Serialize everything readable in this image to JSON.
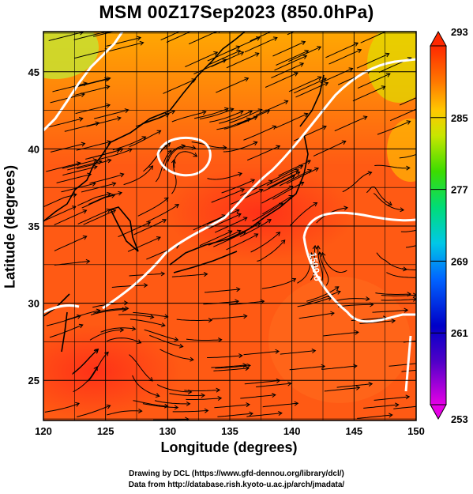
{
  "title": "MSM 00Z17Sep2023 (850.0hPa)",
  "x_axis": {
    "label": "Longitude (degrees)",
    "ticks": [
      "120",
      "125",
      "130",
      "135",
      "140",
      "145",
      "150"
    ],
    "range": [
      120,
      150
    ]
  },
  "y_axis": {
    "label": "Latitude  (degrees)",
    "ticks": [
      "25",
      "30",
      "35",
      "40",
      "45"
    ],
    "range": [
      22.4,
      47.6
    ]
  },
  "contour_label": "1500.0",
  "colorbar": {
    "ticks": [
      "293",
      "285",
      "277",
      "269",
      "261",
      "253"
    ],
    "range": [
      253,
      293
    ],
    "colors": [
      "#e600e6",
      "#0000c8",
      "#00aaff",
      "#00dc78",
      "#50dc00",
      "#c8e600",
      "#ffb400",
      "#ff6400",
      "#ff2800"
    ]
  },
  "credits": {
    "line1": "Drawing by DCL (https://www.gfd-dennou.org/library/dcl/)",
    "line2": "Data from http://database.rish.kyoto-u.ac.jp/arch/jmadata/"
  }
}
